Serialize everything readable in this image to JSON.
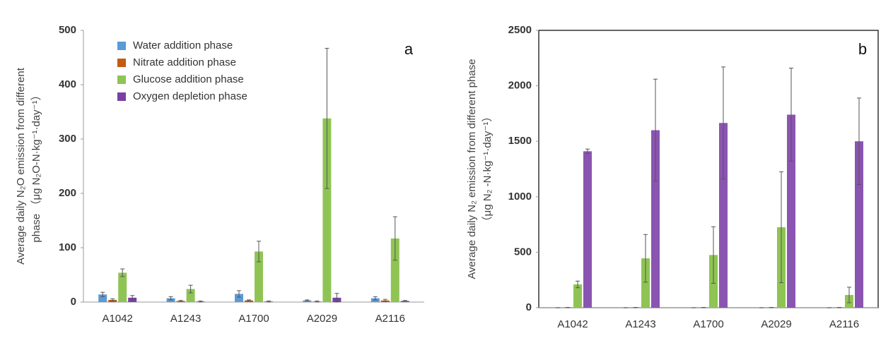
{
  "chart_data": [
    {
      "type": "bar",
      "panel_label": "a",
      "y_label_lines": [
        "Average daily N₂O emission from different",
        "phase （μg N₂O-N·kg⁻¹·day⁻¹）"
      ],
      "categories": [
        "A1042",
        "A1243",
        "A1700",
        "A2029",
        "A2116"
      ],
      "ylim": [
        0,
        500
      ],
      "yticks": [
        0,
        100,
        200,
        300,
        400,
        500
      ],
      "frame": false,
      "series": [
        {
          "name": "Water addition phase",
          "color": "#5b9bd5",
          "values": [
            14,
            7,
            15,
            3,
            7
          ],
          "errors": [
            4,
            3,
            6,
            1,
            3
          ]
        },
        {
          "name": "Nitrate addition phase",
          "color": "#c55a11",
          "values": [
            4,
            2,
            3,
            1,
            3
          ],
          "errors": [
            2,
            1,
            1,
            1,
            2
          ]
        },
        {
          "name": "Glucose addition phase",
          "color": "#8fc454",
          "values": [
            54,
            24,
            93,
            338,
            117
          ],
          "errors": [
            7,
            7,
            19,
            129,
            40
          ]
        },
        {
          "name": "Oxygen depletion phase",
          "color": "#7a3fa5",
          "values": [
            8,
            1,
            1,
            8,
            2
          ],
          "errors": [
            4,
            1,
            1,
            8,
            1
          ]
        }
      ]
    },
    {
      "type": "bar",
      "panel_label": "b",
      "y_label_lines": [
        "Average daily N₂ emission from different phase",
        "（μg N₂  -N·kg⁻¹·day⁻¹）"
      ],
      "categories": [
        "A1042",
        "A1243",
        "A1700",
        "A2029",
        "A2116"
      ],
      "ylim": [
        0,
        2500
      ],
      "yticks": [
        0,
        500,
        1000,
        1500,
        2000,
        2500
      ],
      "frame": true,
      "series": [
        {
          "color": "#5b9bd5",
          "values": [
            0,
            0,
            0,
            0,
            0
          ],
          "errors": [
            0,
            0,
            0,
            0,
            0
          ]
        },
        {
          "color": "#c55a11",
          "values": [
            2,
            2,
            2,
            2,
            2
          ],
          "errors": [
            0,
            0,
            0,
            0,
            0
          ]
        },
        {
          "color": "#8fc454",
          "values": [
            210,
            445,
            475,
            725,
            115
          ],
          "errors": [
            30,
            215,
            255,
            500,
            70
          ]
        },
        {
          "color": "#8a55b0",
          "values": [
            1410,
            1600,
            1665,
            1740,
            1500
          ],
          "errors": [
            20,
            460,
            505,
            420,
            390
          ]
        }
      ]
    }
  ]
}
